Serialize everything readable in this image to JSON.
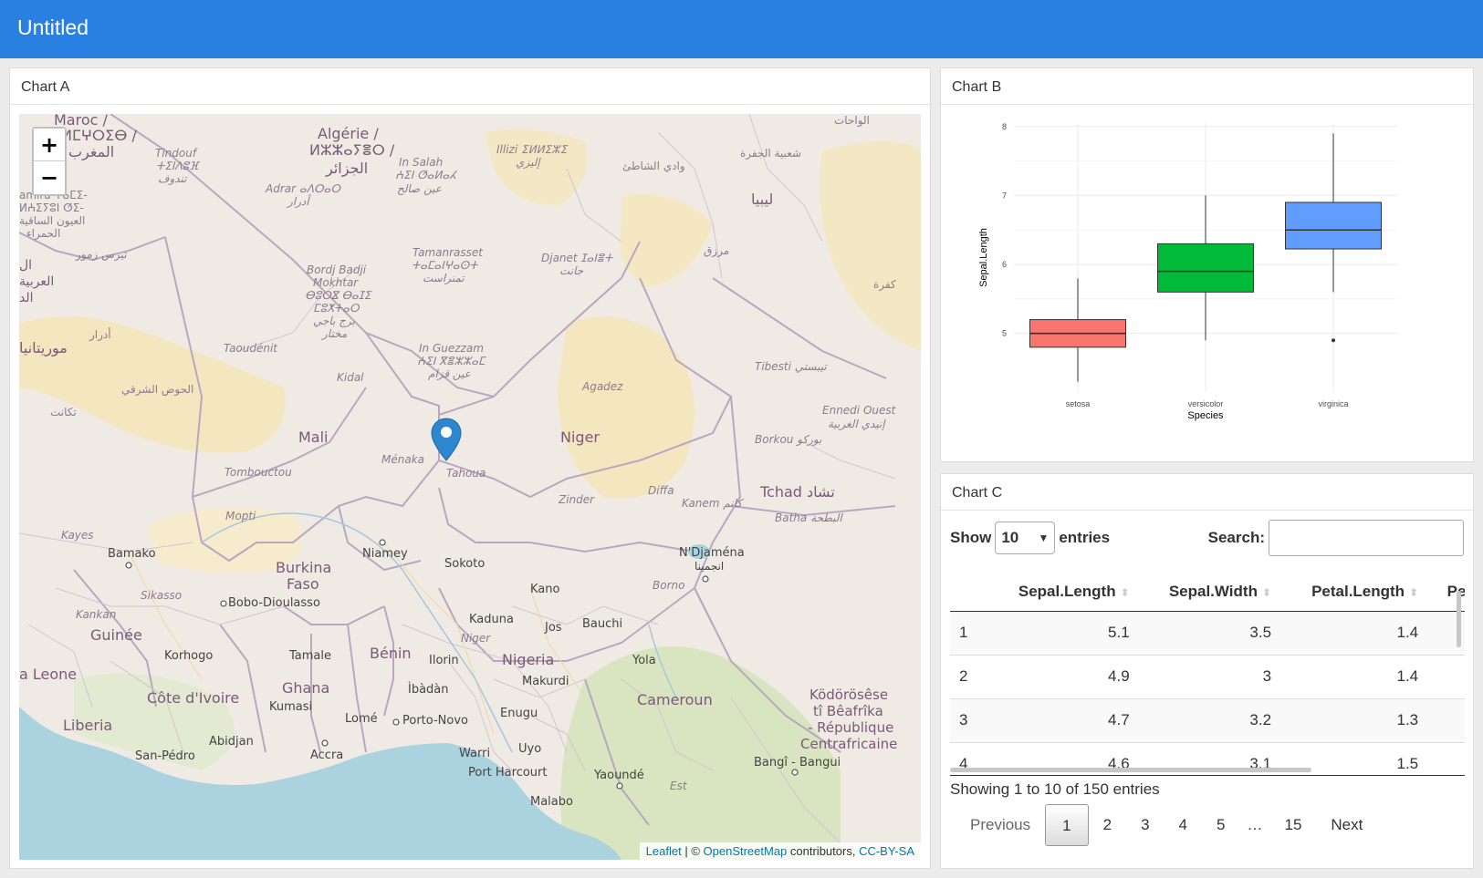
{
  "app": {
    "title": "Untitled"
  },
  "chartA": {
    "title": "Chart A",
    "zoom_in": "+",
    "zoom_out": "−",
    "attribution": {
      "leaflet": "Leaflet",
      "sep": " | © ",
      "osm": "OpenStreetMap",
      "contributors": " contributors, ",
      "license": "CC-BY-SA"
    },
    "labels": {
      "maroc": "Maroc /",
      "maroc2": "ⵍⵎⵖⵔⵉⴱ /",
      "maroc3": "المغرب",
      "algerie": "Algérie /",
      "algerie2": "ⵍⵣⵣⴰⵢⴻⵔ /",
      "algerie3": "الجزائر",
      "libya": "ليبيا",
      "mali": "Mali",
      "niger": "Niger",
      "tchad": "Tchad تشاد",
      "mauritanie": "موريتانيا",
      "burkina": "Burkina",
      "faso": "Faso",
      "guinee": "Guinée",
      "sierra": "a Leone",
      "liberia": "Liberia",
      "cotedivoire": "Côte d'Ivoire",
      "ghana": "Ghana",
      "benin": "Bénin",
      "nigeria": "Nigeria",
      "cameroun": "Cameroun",
      "centrafrique1": "Ködörösêse",
      "centrafrique2": "tî Bêafrîka",
      "centrafrique3": "- République",
      "centrafrique4": "Centrafricaine",
      "tindouf": "Tindouf",
      "tindouf2": "ⵜⵉⵏⴷⵓⴼ",
      "tindouf3": "تندوف",
      "adrar": "Adrar ⴰⴷⵔⴰⵔ",
      "adrar2": "أدرار",
      "insalah": "In Salah",
      "insalah2": "ⵄⵉⵏ ⵚⴰⵍⴰⵃ",
      "insalah3": "عين صالح",
      "illizi": "Illizi ⵉⵍⵍⵉⵣⵉ",
      "illizi2": "إليزي",
      "ouedchati": "وادي الشاطئ",
      "jufra": "شعبية الجفرة",
      "wahat": "الواحات",
      "tamanrasset": "Tamanrasset",
      "tamanrasset2": "ⵜⴰⵎⴰⵏⵖⴰⵙⵜ",
      "tamanrasset3": "تمنراست",
      "djanet": "Djanet ⵊⴰⵏⴻⵜ",
      "djanet2": "جانت",
      "murzuq": "مرزق",
      "kufra": "كفرة",
      "bordj1": "Bordj Badji",
      "bordj2": "Mokhtar",
      "bordj3": "ⴱⵓⵔⴵ ⴱⴰⵊⵉ",
      "bordj4": "ⵎⵓⵅⵜⴰⵔ",
      "bordj5": "برج باجي",
      "bordj6": "مختار",
      "ingezzam": "In Guezzam",
      "ingezzam2": "ⵄⵉⵏ ⴳⴻⵣⵣⴰⵎ",
      "ingezzam3": "عين قزام",
      "tirszemour": "تيرس زمور",
      "adrar3": "أدرار",
      "taoudenit": "Taoudénit",
      "kidal": "Kidal",
      "agadez": "Agadez",
      "tibesti": "Tibesti تيبستي",
      "ennedi": "Ennedi Ouest",
      "ennedi2": "إنيدي الغربية",
      "borkou": "Borkou بوركو",
      "hodh": "الحوض الشرقي",
      "tagant": "تكانت",
      "menaka": "Ménaka",
      "tahoua": "Tahoua",
      "tombouctou": "Tombouctou",
      "mopti": "Mopti",
      "diffa": "Diffa",
      "zinder": "Zinder",
      "kanem": "Kanem كانم",
      "batha": "Batha البطحة",
      "kayes": "Kayes",
      "bamako": "Bamako",
      "niamey": "Niamey",
      "sokoto": "Sokoto",
      "ndjamena": "N'Djaména",
      "ndjamena2": "انجمينا",
      "kano": "Kano",
      "borno": "Borno",
      "sikasso": "Sikasso",
      "bobo": "Bobo-Dioulasso",
      "kankan": "Kankan",
      "kaduna": "Kaduna",
      "jos": "Jos",
      "bauchi": "Bauchi",
      "niger_state": "Niger",
      "korhogo": "Korhogo",
      "tamale": "Tamale",
      "ilorin": "Ilorin",
      "yola": "Yola",
      "makurdi": "Makurdi",
      "ibadan": "Ìbàdàn",
      "kumasi": "Kumasi",
      "enugu": "Enugu",
      "lome": "Lomé",
      "portonovo": "Porto-Novo",
      "abidjan": "Abidjan",
      "accra": "Accra",
      "sanpedro": "San-Pédro",
      "warri": "Warri",
      "uyo": "Uyo",
      "portharcourt": "Port Harcourt",
      "yaounde": "Yaoundé",
      "est": "Est",
      "malabo": "Malabo",
      "bangui": "Bangî - Bangui",
      "tichla1": "amira ⵖⴰⵎⵉ-",
      "tichla2": "ⵍⵄⵉⵢⵓⵏ ⵚⵉ-",
      "tichla3": "العيون الساقية",
      "tichla4": "الحمراء",
      "arabi1": "العربية",
      "arabi2": "الد",
      "adrarx": "ال"
    }
  },
  "chartB": {
    "title": "Chart B",
    "chart_data": {
      "type": "boxplot",
      "xlabel": "Species",
      "ylabel": "Sepal.Length",
      "categories": [
        "setosa",
        "versicolor",
        "virginica"
      ],
      "yticks": [
        5,
        6,
        7,
        8
      ],
      "ylim": [
        4.3,
        7.9
      ],
      "boxes": [
        {
          "category": "setosa",
          "min": 4.3,
          "q1": 4.8,
          "median": 5.0,
          "q3": 5.2,
          "max": 5.8,
          "outliers": [],
          "color": "#f8766d"
        },
        {
          "category": "versicolor",
          "min": 4.9,
          "q1": 5.6,
          "median": 5.9,
          "q3": 6.3,
          "max": 7.0,
          "outliers": [],
          "color": "#00ba38"
        },
        {
          "category": "virginica",
          "min": 5.6,
          "q1": 6.225,
          "median": 6.5,
          "q3": 6.9,
          "max": 7.9,
          "outliers": [
            4.9
          ],
          "color": "#619cff"
        }
      ]
    }
  },
  "chartC": {
    "title": "Chart C",
    "show_label": "Show",
    "entries_label": "entries",
    "length_value": "10",
    "search_label": "Search:",
    "search_value": "",
    "columns": [
      "",
      "Sepal.Length",
      "Sepal.Width",
      "Petal.Length",
      "Petal."
    ],
    "rows": [
      [
        "1",
        "5.1",
        "3.5",
        "1.4",
        ""
      ],
      [
        "2",
        "4.9",
        "3",
        "1.4",
        ""
      ],
      [
        "3",
        "4.7",
        "3.2",
        "1.3",
        ""
      ],
      [
        "4",
        "4.6",
        "3.1",
        "1.5",
        ""
      ]
    ],
    "info": "Showing 1 to 10 of 150 entries",
    "paging": {
      "previous": "Previous",
      "pages": [
        "1",
        "2",
        "3",
        "4",
        "5"
      ],
      "ellipsis": "…",
      "last": "15",
      "next": "Next"
    }
  }
}
